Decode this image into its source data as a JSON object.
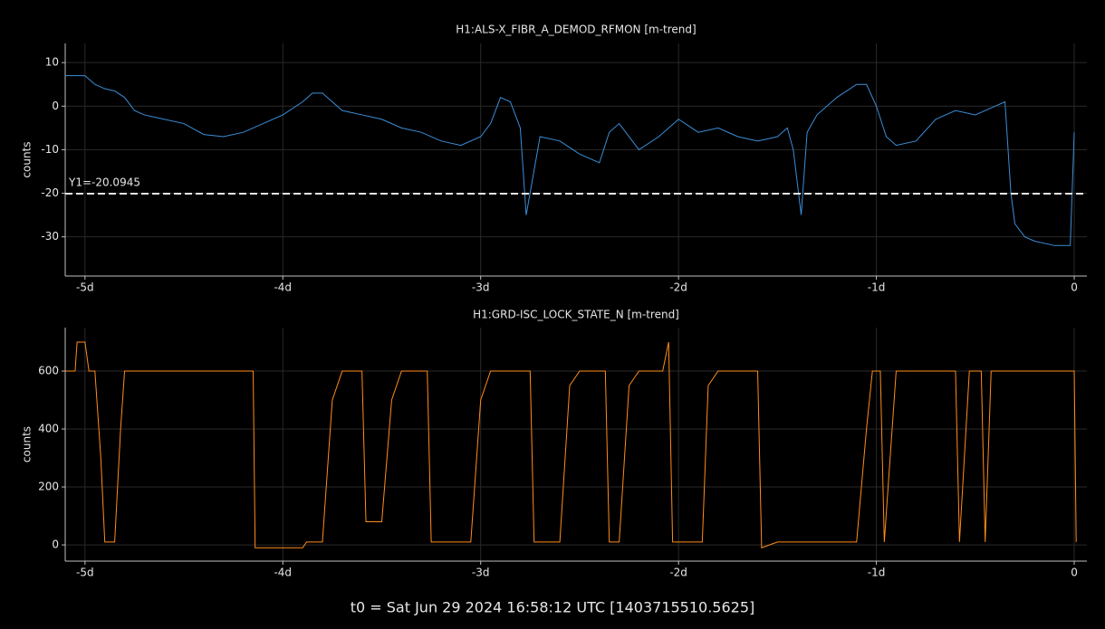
{
  "chart_data": [
    {
      "type": "line",
      "title": "H1:ALS-X_FIBR_A_DEMOD_RFMON [m-trend]",
      "ylabel": "counts",
      "x": [
        -5.1,
        -5.0,
        -4.95,
        -4.9,
        -4.85,
        -4.8,
        -4.75,
        -4.7,
        -4.6,
        -4.5,
        -4.4,
        -4.3,
        -4.2,
        -4.1,
        -4.0,
        -3.9,
        -3.85,
        -3.8,
        -3.7,
        -3.6,
        -3.5,
        -3.4,
        -3.3,
        -3.2,
        -3.1,
        -3.0,
        -2.95,
        -2.9,
        -2.85,
        -2.8,
        -2.77,
        -2.7,
        -2.6,
        -2.5,
        -2.4,
        -2.35,
        -2.3,
        -2.2,
        -2.1,
        -2.0,
        -1.9,
        -1.8,
        -1.7,
        -1.6,
        -1.5,
        -1.45,
        -1.42,
        -1.38,
        -1.35,
        -1.3,
        -1.2,
        -1.1,
        -1.05,
        -1.0,
        -0.95,
        -0.9,
        -0.8,
        -0.7,
        -0.6,
        -0.5,
        -0.4,
        -0.35,
        -0.32,
        -0.3,
        -0.25,
        -0.2,
        -0.1,
        -0.02,
        0.0
      ],
      "series": [
        {
          "name": "H1:ALS-X_FIBR_A_DEMOD_RFMON",
          "color": "#3b8ed8",
          "values": [
            7,
            7,
            5,
            4,
            3.5,
            2,
            -1,
            -2,
            -3,
            -4,
            -6.5,
            -7,
            -6,
            -4,
            -2,
            1,
            3,
            3,
            -1,
            -2,
            -3,
            -5,
            -6,
            -8,
            -9,
            -7,
            -4,
            2,
            1,
            -5,
            -25,
            -7,
            -8,
            -11,
            -13,
            -6,
            -4,
            -10,
            -7,
            -3,
            -6,
            -5,
            -7,
            -8,
            -7,
            -5,
            -10,
            -25,
            -6,
            -2,
            2,
            5,
            5,
            0,
            -7,
            -9,
            -8,
            -3,
            -1,
            -2,
            0,
            1,
            -20,
            -27,
            -30,
            -31,
            -32,
            -32,
            -6
          ]
        }
      ],
      "xlim": [
        -5.1,
        0.064
      ],
      "ylim": [
        -39,
        14.4
      ],
      "xticks": [
        {
          "value": -5,
          "label": "-5d"
        },
        {
          "value": -4,
          "label": "-4d"
        },
        {
          "value": -3,
          "label": "-3d"
        },
        {
          "value": -2,
          "label": "-2d"
        },
        {
          "value": -1,
          "label": "-1d"
        },
        0
      ],
      "yticks": [
        -30,
        -20,
        -10,
        0,
        10
      ],
      "grid": true,
      "annotations": [
        {
          "label": "Y1=-20.0945",
          "value": -20.0945
        }
      ]
    },
    {
      "type": "line",
      "title": "H1:GRD-ISC_LOCK_STATE_N [m-trend]",
      "ylabel": "counts",
      "x": [
        -5.1,
        -5.05,
        -5.04,
        -5.0,
        -4.98,
        -4.95,
        -4.92,
        -4.9,
        -4.85,
        -4.82,
        -4.8,
        -4.15,
        -4.14,
        -3.9,
        -3.88,
        -3.8,
        -3.75,
        -3.7,
        -3.6,
        -3.58,
        -3.5,
        -3.45,
        -3.4,
        -3.27,
        -3.25,
        -3.05,
        -3.0,
        -2.95,
        -2.75,
        -2.73,
        -2.6,
        -2.55,
        -2.5,
        -2.37,
        -2.35,
        -2.3,
        -2.25,
        -2.2,
        -2.08,
        -2.05,
        -2.03,
        -1.88,
        -1.85,
        -1.8,
        -1.6,
        -1.58,
        -1.5,
        -1.1,
        -1.05,
        -1.02,
        -0.98,
        -0.96,
        -0.9,
        -0.6,
        -0.58,
        -0.53,
        -0.47,
        -0.45,
        -0.42,
        0.0,
        0.01
      ],
      "series": [
        {
          "name": "H1:GRD-ISC_LOCK_STATE_N",
          "color": "#ff8c1a",
          "values": [
            600,
            600,
            700,
            700,
            600,
            600,
            300,
            10,
            10,
            400,
            600,
            600,
            -10,
            -10,
            10,
            10,
            500,
            600,
            600,
            80,
            80,
            500,
            600,
            600,
            10,
            10,
            500,
            600,
            600,
            10,
            10,
            550,
            600,
            600,
            10,
            10,
            550,
            600,
            600,
            700,
            10,
            10,
            550,
            600,
            600,
            -10,
            10,
            10,
            400,
            600,
            600,
            10,
            600,
            600,
            10,
            600,
            600,
            10,
            600,
            600,
            10
          ]
        }
      ],
      "xlim": [
        -5.1,
        0.064
      ],
      "ylim": [
        -56,
        750
      ],
      "xticks": [
        {
          "value": -5,
          "label": "-5d"
        },
        {
          "value": -4,
          "label": "-4d"
        },
        {
          "value": -3,
          "label": "-3d"
        },
        {
          "value": -2,
          "label": "-2d"
        },
        {
          "value": -1,
          "label": "-1d"
        },
        0
      ],
      "yticks": [
        0,
        200,
        400,
        600
      ],
      "grid": true
    }
  ],
  "footer": "t0 = Sat Jun 29 2024 16:58:12 UTC [1403715510.5625]"
}
